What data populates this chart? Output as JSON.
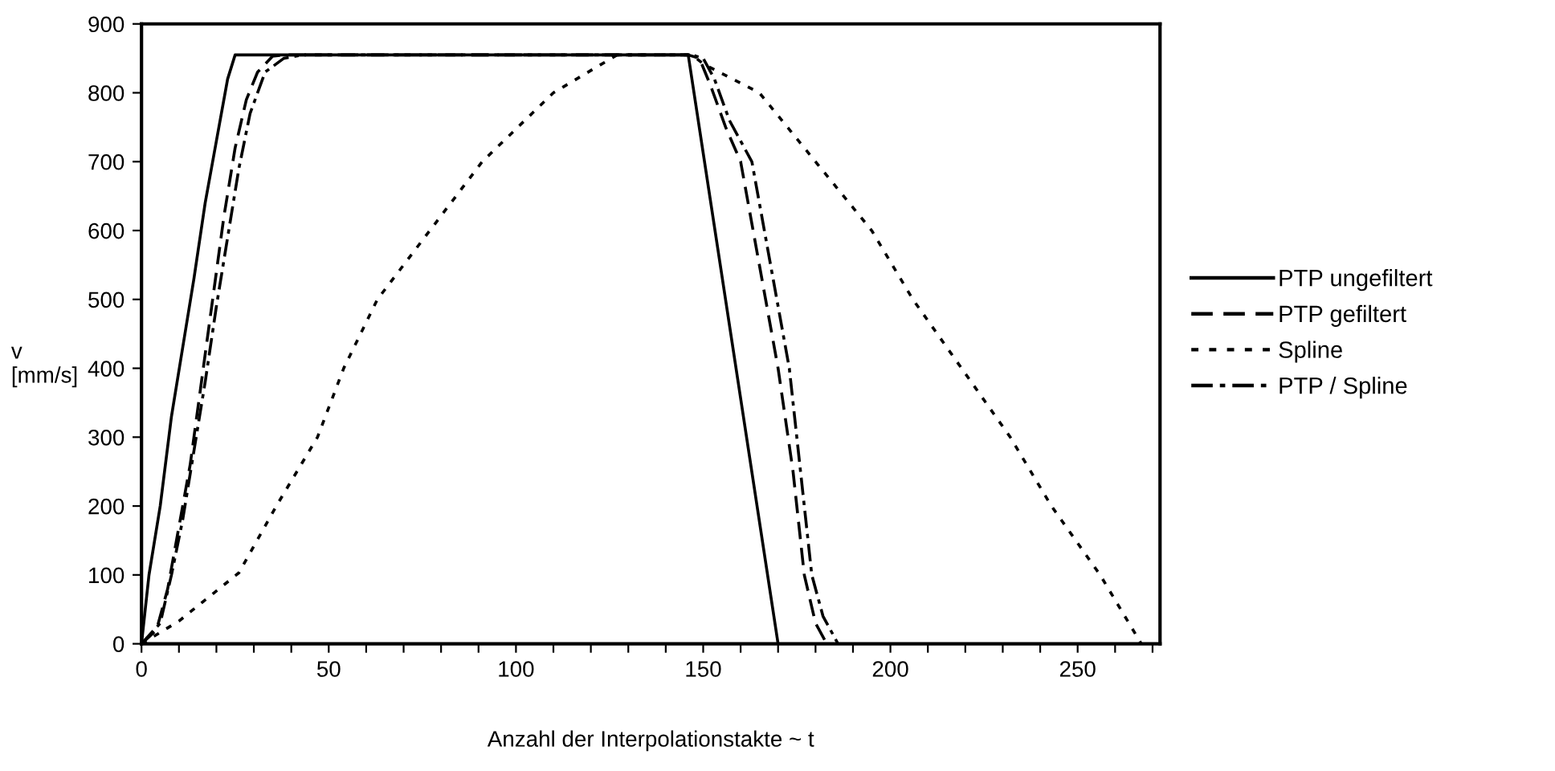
{
  "chart_data": {
    "type": "line",
    "xlabel": "Anzahl der Interpolationstakte ~ t",
    "ylabel": "v\n[mm/s]",
    "xlim": [
      0,
      272
    ],
    "ylim": [
      0,
      900
    ],
    "xticks": [
      0,
      {
        "value": 10,
        "label": null
      },
      {
        "value": 20,
        "label": null
      },
      {
        "value": 30,
        "label": null
      },
      {
        "value": 40,
        "label": null
      },
      50,
      {
        "value": 60,
        "label": null
      },
      {
        "value": 70,
        "label": null
      },
      {
        "value": 80,
        "label": null
      },
      {
        "value": 90,
        "label": null
      },
      100,
      {
        "value": 110,
        "label": null
      },
      {
        "value": 120,
        "label": null
      },
      {
        "value": 130,
        "label": null
      },
      {
        "value": 140,
        "label": null
      },
      150,
      {
        "value": 160,
        "label": null
      },
      {
        "value": 170,
        "label": null
      },
      {
        "value": 180,
        "label": null
      },
      {
        "value": 190,
        "label": null
      },
      200,
      {
        "value": 210,
        "label": null
      },
      {
        "value": 220,
        "label": null
      },
      {
        "value": 230,
        "label": null
      },
      {
        "value": 240,
        "label": null
      },
      250,
      {
        "value": 260,
        "label": null
      },
      {
        "value": 270,
        "label": null
      }
    ],
    "yticks": [
      0,
      100,
      200,
      300,
      400,
      500,
      600,
      700,
      800,
      900
    ],
    "grid": false,
    "legend": "right",
    "marker": "none",
    "series": [
      {
        "name": "PTP ungefiltert",
        "color": "#000000",
        "line_style": "solid",
        "x": [
          0,
          2,
          5,
          8,
          11,
          14,
          17,
          20,
          23,
          25,
          146,
          170
        ],
        "values": [
          0,
          100,
          200,
          330,
          430,
          530,
          640,
          730,
          820,
          855,
          855,
          0
        ]
      },
      {
        "name": "PTP gefiltert",
        "color": "#000000",
        "line_style": "dashed",
        "x": [
          0,
          4,
          7,
          10,
          13,
          16,
          19,
          22,
          25,
          28,
          31,
          35,
          38,
          146,
          149,
          152,
          156,
          160,
          165,
          170,
          174,
          177,
          180,
          183
        ],
        "values": [
          0,
          20,
          80,
          170,
          260,
          380,
          500,
          620,
          720,
          790,
          830,
          853,
          855,
          855,
          850,
          810,
          750,
          700,
          550,
          400,
          250,
          100,
          30,
          0
        ]
      },
      {
        "name": "Spline",
        "color": "#000000",
        "line_style": "dotted",
        "x": [
          0,
          10,
          26,
          36,
          47,
          54,
          63,
          77,
          91,
          110,
          127,
          147,
          150,
          165,
          180,
          195,
          206,
          219,
          232,
          243,
          256,
          267
        ],
        "values": [
          0,
          33,
          103,
          200,
          300,
          400,
          500,
          600,
          700,
          800,
          855,
          855,
          842,
          800,
          700,
          600,
          500,
          400,
          300,
          200,
          100,
          0
        ]
      },
      {
        "name": "PTP / Spline",
        "color": "#000000",
        "line_style": "dashdot",
        "x": [
          0,
          5,
          8,
          11,
          14,
          17,
          20,
          23,
          26,
          29,
          33,
          38,
          43,
          147,
          150,
          153,
          157,
          163,
          168,
          173,
          176,
          179,
          182,
          186
        ],
        "values": [
          0,
          30,
          100,
          180,
          280,
          380,
          490,
          590,
          690,
          770,
          830,
          850,
          855,
          855,
          850,
          820,
          760,
          700,
          550,
          400,
          250,
          100,
          40,
          0
        ]
      }
    ]
  }
}
